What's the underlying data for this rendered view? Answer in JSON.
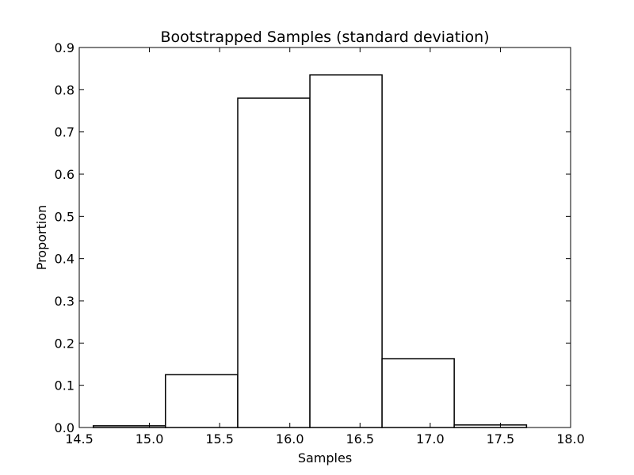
{
  "chart_data": {
    "type": "bar",
    "title": "Bootstrapped Samples (standard deviation)",
    "xlabel": "Samples",
    "ylabel": "Proportion",
    "xlim": [
      14.5,
      18.0
    ],
    "ylim": [
      0.0,
      0.9
    ],
    "xticks": [
      "14.5",
      "15.0",
      "15.5",
      "16.0",
      "16.5",
      "17.0",
      "17.5",
      "18.0"
    ],
    "yticks": [
      "0.0",
      "0.1",
      "0.2",
      "0.3",
      "0.4",
      "0.5",
      "0.6",
      "0.7",
      "0.8",
      "0.9"
    ],
    "bin_edges": [
      14.6,
      15.114,
      15.629,
      16.143,
      16.657,
      17.171,
      17.686
    ],
    "values": [
      0.004,
      0.125,
      0.78,
      0.835,
      0.163,
      0.006
    ],
    "grid": false,
    "colors": {
      "bar_fill": "#ffffff",
      "bar_edge": "#000000",
      "axes": "#000000"
    }
  }
}
